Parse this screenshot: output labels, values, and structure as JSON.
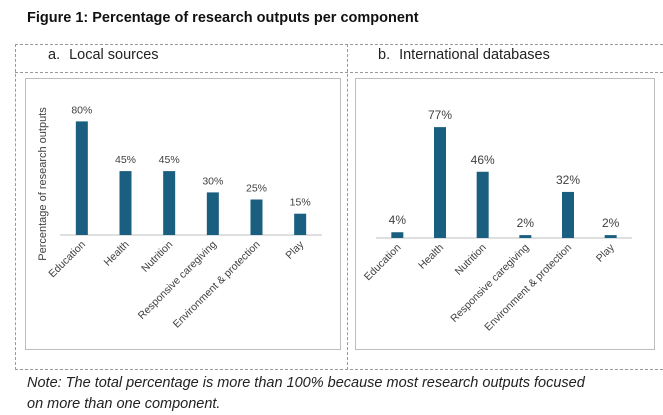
{
  "figure_title": "Figure 1: Percentage of research outputs per component",
  "panels": [
    {
      "letter": "a.",
      "title": "Local sources"
    },
    {
      "letter": "b.",
      "title": "International databases"
    }
  ],
  "note": {
    "line1": "Note: The total percentage is more than 100% because most research outputs focused",
    "line2": "on more than one component."
  },
  "colors": {
    "bar": "#1a5e80",
    "axis": "#bfbfbf",
    "text": "#404040"
  },
  "chart_data": [
    {
      "type": "bar",
      "title": "Local sources",
      "ylabel": "Percentage of research outputs",
      "xlabel": "",
      "categories": [
        "Education",
        "Health",
        "Nutrition",
        "Responsive caregiving",
        "Environment & protection",
        "Play"
      ],
      "values": [
        80,
        45,
        45,
        30,
        25,
        15
      ],
      "data_labels": [
        "80%",
        "45%",
        "45%",
        "30%",
        "25%",
        "15%"
      ],
      "ylim": [
        0,
        100
      ],
      "grid": false
    },
    {
      "type": "bar",
      "title": "International databases",
      "ylabel": "",
      "xlabel": "",
      "categories": [
        "Education",
        "Health",
        "Nutrition",
        "Responsive caregiving",
        "Environment & protection",
        "Play"
      ],
      "values": [
        4,
        77,
        46,
        2,
        32,
        2
      ],
      "data_labels": [
        "4%",
        "77%",
        "46%",
        "2%",
        "32%",
        "2%"
      ],
      "ylim": [
        0,
        100
      ],
      "grid": false
    }
  ]
}
